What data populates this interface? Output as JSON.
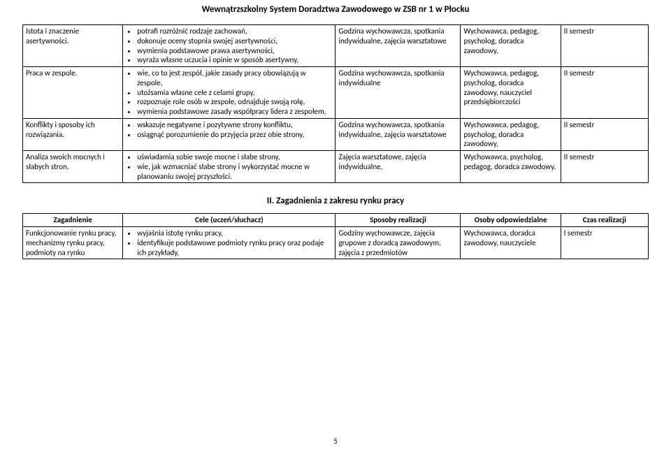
{
  "header": "Wewnątrzszkolny System Doradztwa Zawodowego w ZSB nr 1 w Płocku",
  "table1": {
    "rows": [
      {
        "topic": "Istota i znaczenie asertywności.",
        "goals": [
          "potrafi rozróżnić rodzaje zachowań,",
          "dokonuje oceny stopnia swojej asertywności,",
          "wymienia podstawowe prawa asertywności,",
          "wyraża własne uczucia i opinie w sposób asertywny,"
        ],
        "methods": "Godzina wychowawcza, spotkania indywidualne, zajęcia warsztatowe",
        "persons": "Wychowawca, pedagog, psycholog, doradca zawodowy,",
        "time": "II semestr"
      },
      {
        "topic": "Praca w zespole.",
        "goals": [
          "wie, co to jest zespół, jakie zasady pracy obowiązują w zespole,",
          "utożsamia własne cele z celami grupy,",
          "rozpoznaje role osób w zespole, odnajduje swoją rolę,",
          "wymienia podstawowe zasady współpracy lidera z zespołem,"
        ],
        "methods": "Godzina wychowawcza, spotkania indywidualne",
        "persons": "Wychowawca, pedagog, psycholog, doradca zawodowy, nauczyciel przedsiębiorczości",
        "time": "II semestr"
      },
      {
        "topic": "Konflikty i sposoby ich rozwiązania.",
        "goals": [
          "wskazuje negatywne i pozytywne strony konfliktu,",
          "osiągnąć porozumienie do przyjęcia przez obie strony,"
        ],
        "methods": "Godzina wychowawcza, spotkania indywidualne, zajęcia warsztatowe",
        "persons": "Wychowawca, pedagog, psycholog, doradca zawodowy,",
        "time": "II semestr"
      },
      {
        "topic": "Analiza swoich mocnych i słabych stron.",
        "goals": [
          "uświadamia sobie swoje mocne i słabe strony,",
          "wie, jak wzmacniać słabe strony i wykorzystać mocne w planowaniu swojej przyszłości."
        ],
        "methods": "Zajęcia warsztatowe, zajęcia indywidualne,",
        "persons": "Wychowawca, psycholog, pedagog, doradca zawodowy.",
        "time": "II semestr"
      }
    ]
  },
  "section2_title": "II. Zagadnienia z zakresu rynku pracy",
  "table2": {
    "headers": {
      "topic": "Zagadnienie",
      "goals": "Cele (uczeń/słuchacz)",
      "methods": "Sposoby realizacji",
      "persons": "Osoby odpowiedzialne",
      "time": "Czas realizacji"
    },
    "rows": [
      {
        "topic": "Funkcjonowanie rynku pracy, mechanizmy rynku pracy, podmioty na rynku",
        "goals": [
          "wyjaśnia istotę rynku pracy,",
          "identyfikuje podstawowe podmioty rynku pracy oraz podaje ich przykłady,"
        ],
        "methods": "Godziny wychowawcze, zajęcia grupowe z doradcą zawodowym, zajęcia z przedmiotów",
        "persons": "Wychowawca, doradca zawodowy, nauczyciele",
        "time": "I semestr"
      }
    ]
  },
  "page_number": "5"
}
